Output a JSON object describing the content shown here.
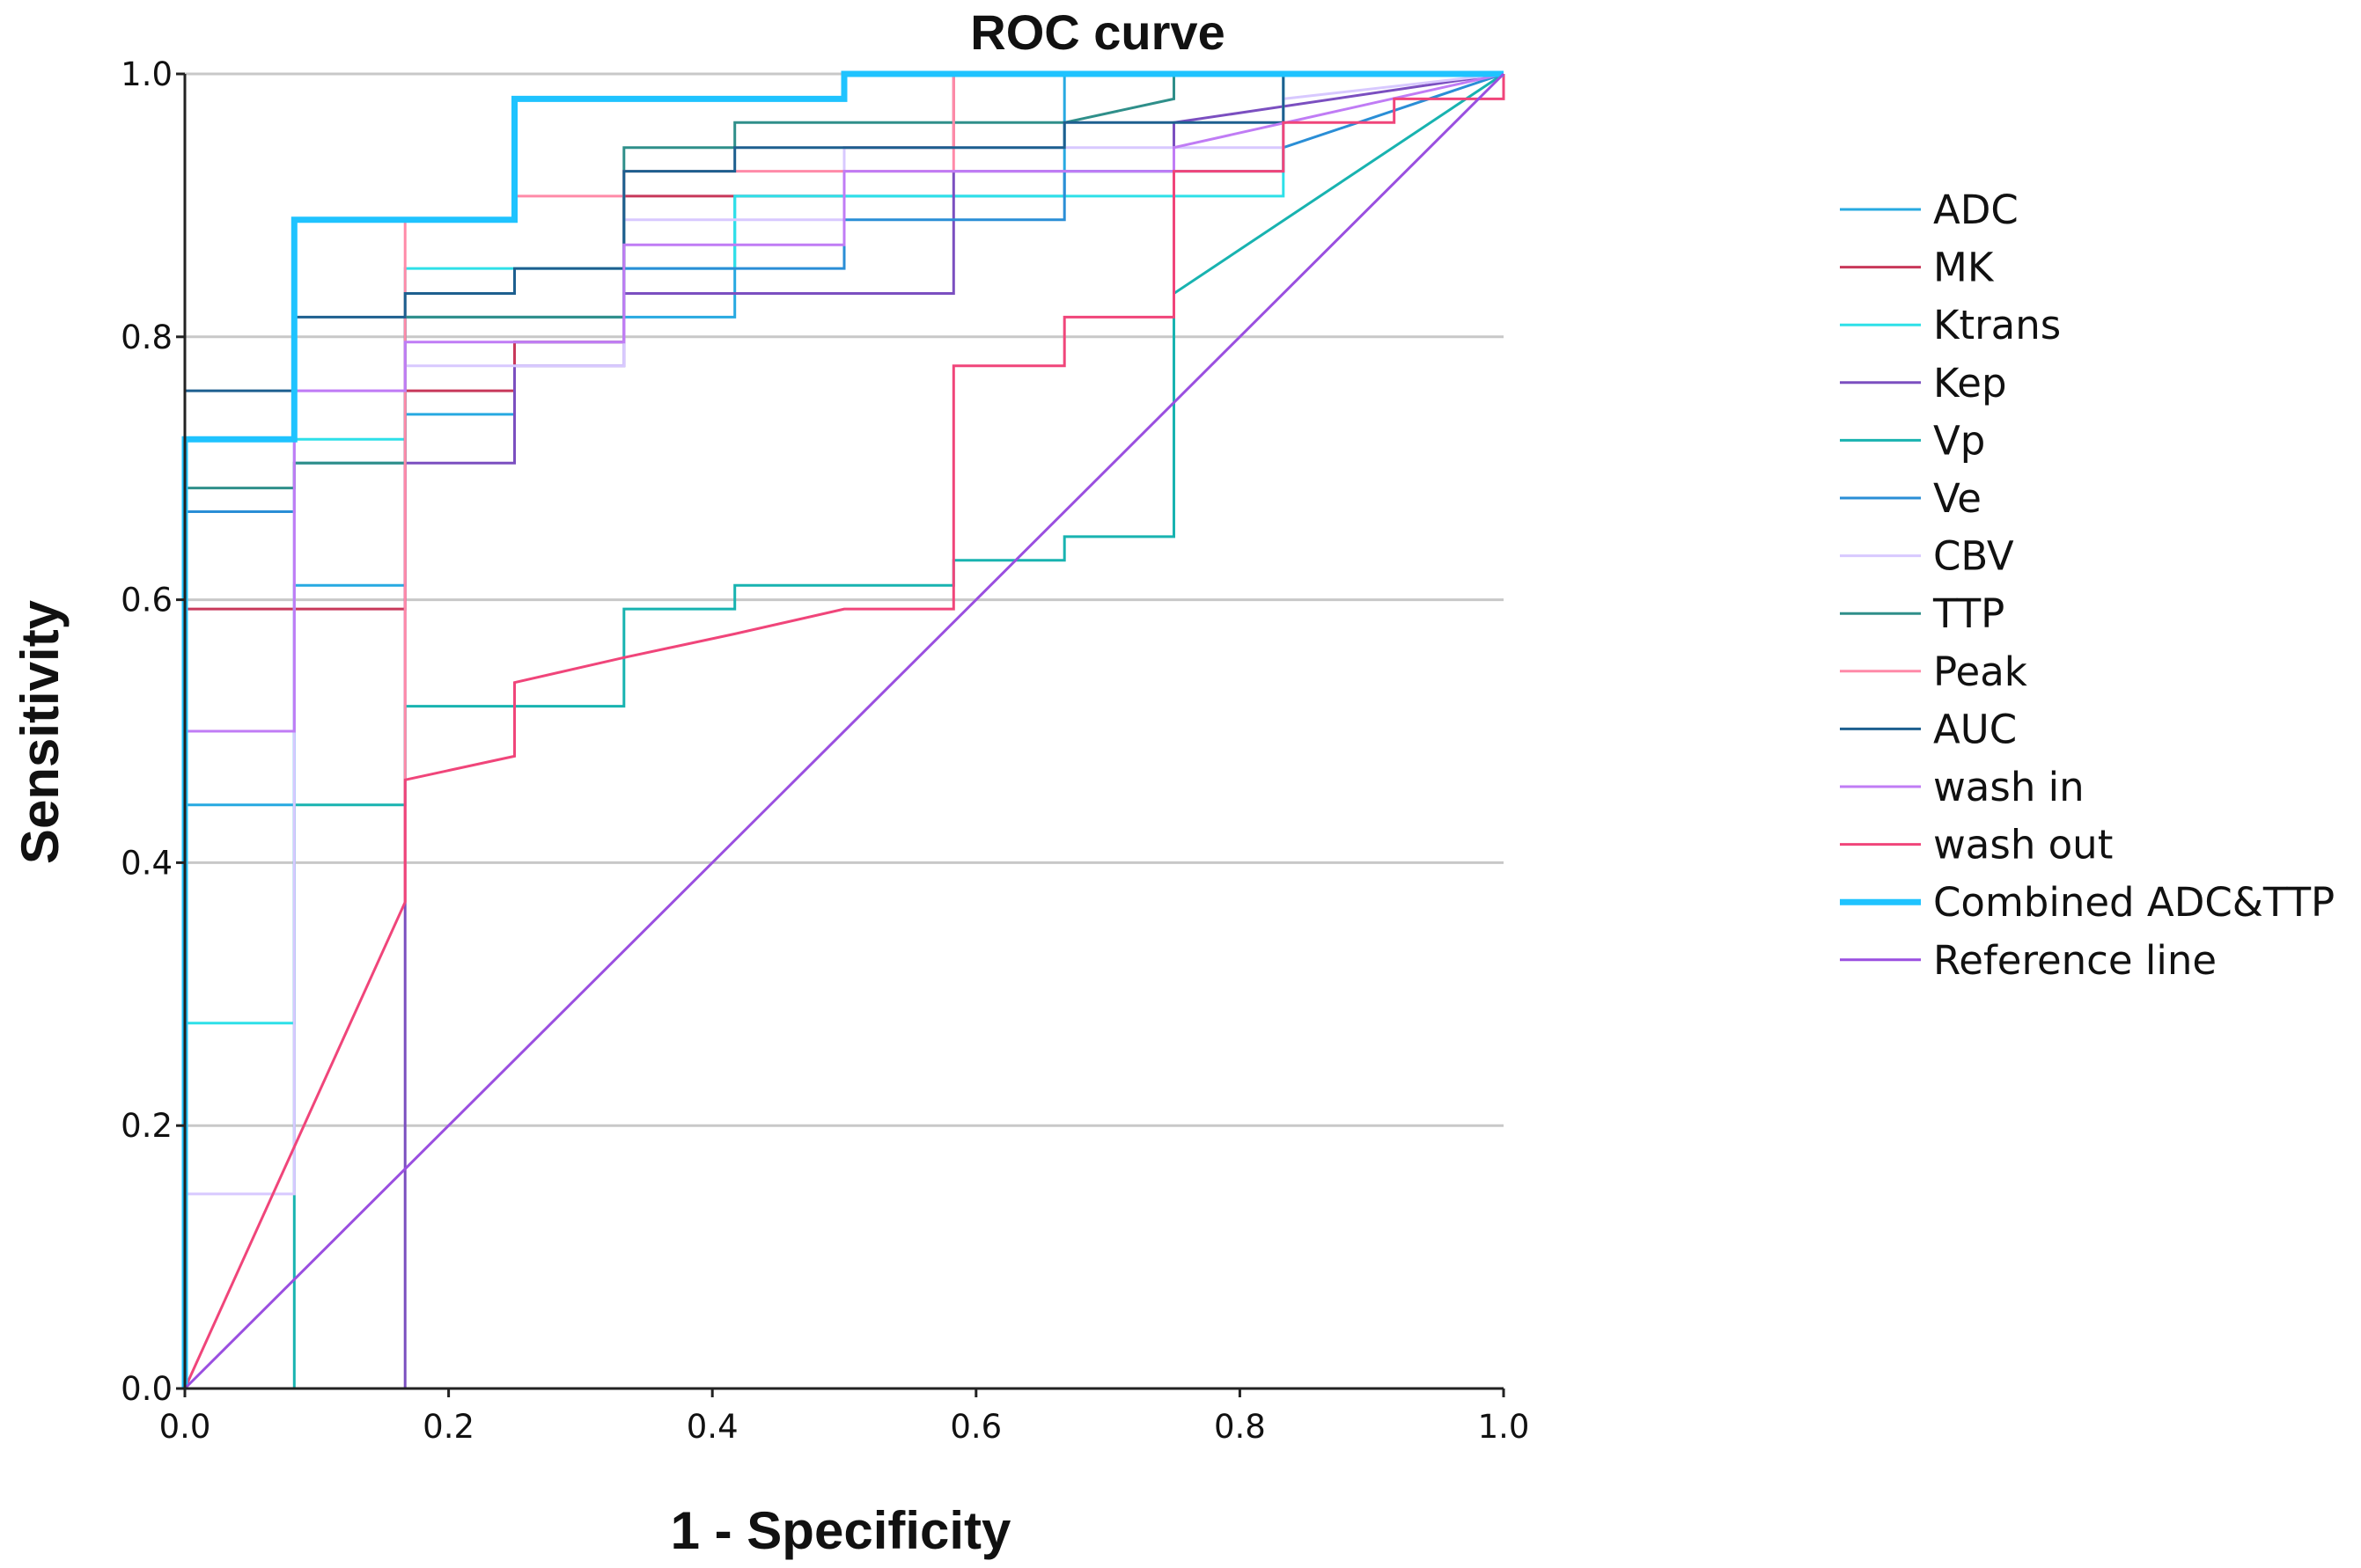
{
  "chart_data": {
    "type": "line",
    "title": "ROC curve",
    "xlabel": "1 - Specificity",
    "ylabel": "Sensitivity",
    "xlim": [
      0,
      1
    ],
    "ylim": [
      0,
      1
    ],
    "x_ticks": [
      "0.0",
      "0.2",
      "0.4",
      "0.6",
      "0.8",
      "1.0"
    ],
    "y_ticks": [
      "0.0",
      "0.2",
      "0.4",
      "0.6",
      "0.8",
      "1.0"
    ],
    "grid": "horizontal",
    "legend_position": "right",
    "series": [
      {
        "name": "ADC",
        "color": "#27a9e1",
        "width": 3,
        "x": [
          0,
          0,
          0,
          0.083,
          0.083,
          0.083,
          0.167,
          0.167,
          0.25,
          0.25,
          0.333,
          0.333,
          0.417,
          0.417,
          0.667,
          0.667,
          1
        ],
        "y": [
          0,
          0.444,
          0.444,
          0.444,
          0.611,
          0.611,
          0.611,
          0.741,
          0.741,
          0.796,
          0.796,
          0.815,
          0.815,
          0.907,
          0.907,
          1,
          1
        ]
      },
      {
        "name": "MK",
        "color": "#c8385a",
        "width": 3,
        "x": [
          0,
          0,
          0.167,
          0.167,
          0.25,
          0.25,
          0.333,
          0.333,
          0.5,
          0.5,
          0.583,
          0.583,
          1
        ],
        "y": [
          0,
          0.593,
          0.593,
          0.759,
          0.759,
          0.796,
          0.796,
          0.907,
          0.907,
          0.944,
          0.944,
          1,
          1
        ]
      },
      {
        "name": "Ktrans",
        "color": "#2ee0e8",
        "width": 3,
        "x": [
          0,
          0,
          0.083,
          0.083,
          0.167,
          0.167,
          0.333,
          0.333,
          0.417,
          0.417,
          0.75,
          0.75,
          0.833,
          0.833,
          1
        ],
        "y": [
          0,
          0.278,
          0.278,
          0.722,
          0.722,
          0.852,
          0.852,
          0.852,
          0.852,
          0.907,
          0.907,
          0.907,
          0.907,
          1,
          1
        ]
      },
      {
        "name": "Kep",
        "color": "#7b4fc0",
        "width": 3,
        "x": [
          0.083,
          0.167,
          0.167,
          0.25,
          0.25,
          0.333,
          0.333,
          0.583,
          0.583,
          0.75,
          0.75,
          1
        ],
        "y": [
          0,
          0,
          0.704,
          0.704,
          0.778,
          0.778,
          0.833,
          0.833,
          0.926,
          0.926,
          0.963,
          1
        ]
      },
      {
        "name": "Vp",
        "color": "#18b3b0",
        "width": 3,
        "x": [
          0,
          0.083,
          0.083,
          0.167,
          0.167,
          0.333,
          0.333,
          0.417,
          0.417,
          0.583,
          0.583,
          0.667,
          0.667,
          0.75,
          0.75,
          1
        ],
        "y": [
          0,
          0,
          0.444,
          0.444,
          0.519,
          0.519,
          0.593,
          0.593,
          0.611,
          0.611,
          0.63,
          0.63,
          0.648,
          0.648,
          0.833,
          1
        ]
      },
      {
        "name": "Ve",
        "color": "#2a8ed6",
        "width": 3,
        "x": [
          0,
          0,
          0.083,
          0.083,
          0.167,
          0.167,
          0.333,
          0.333,
          0.5,
          0.5,
          0.667,
          0.667,
          0.833,
          0.833,
          1
        ],
        "y": [
          0,
          0.667,
          0.667,
          0.704,
          0.704,
          0.815,
          0.815,
          0.852,
          0.852,
          0.889,
          0.889,
          0.926,
          0.926,
          0.944,
          1
        ]
      },
      {
        "name": "CBV",
        "color": "#d8c9ff",
        "width": 3,
        "x": [
          0,
          0,
          0.083,
          0.083,
          0.167,
          0.167,
          0.333,
          0.333,
          0.5,
          0.5,
          0.833,
          0.833,
          1
        ],
        "y": [
          0,
          0.148,
          0.148,
          0.759,
          0.759,
          0.778,
          0.778,
          0.889,
          0.889,
          0.944,
          0.944,
          0.981,
          1
        ]
      },
      {
        "name": "TTP",
        "color": "#2f8f8a",
        "width": 3,
        "x": [
          0,
          0,
          0.083,
          0.083,
          0.167,
          0.167,
          0.333,
          0.333,
          0.417,
          0.417,
          0.667,
          0.75,
          0.75,
          1
        ],
        "y": [
          0,
          0.685,
          0.685,
          0.704,
          0.704,
          0.815,
          0.815,
          0.944,
          0.944,
          0.963,
          0.963,
          0.981,
          1,
          1
        ]
      },
      {
        "name": "Peak",
        "color": "#ff8aa8",
        "width": 3,
        "x": [
          0.167,
          0.167,
          0.25,
          0.25,
          0.333,
          0.333,
          0.583,
          0.583,
          1
        ],
        "y": [
          0.37,
          0.889,
          0.889,
          0.907,
          0.907,
          0.926,
          0.926,
          1,
          1
        ]
      },
      {
        "name": "AUC",
        "color": "#1d5f8f",
        "width": 3,
        "x": [
          0,
          0,
          0.083,
          0.083,
          0.167,
          0.167,
          0.25,
          0.25,
          0.333,
          0.333,
          0.417,
          0.417,
          0.667,
          0.667,
          0.833,
          0.833,
          1
        ],
        "y": [
          0,
          0.759,
          0.759,
          0.815,
          0.815,
          0.833,
          0.833,
          0.852,
          0.852,
          0.926,
          0.926,
          0.944,
          0.944,
          0.963,
          0.963,
          1,
          1
        ]
      },
      {
        "name": "wash in",
        "color": "#c07cf5",
        "width": 3,
        "x": [
          0,
          0,
          0.083,
          0.083,
          0.167,
          0.167,
          0.25,
          0.25,
          0.333,
          0.333,
          0.5,
          0.5,
          0.75,
          0.75,
          1
        ],
        "y": [
          0,
          0.5,
          0.5,
          0.759,
          0.759,
          0.796,
          0.796,
          0.796,
          0.796,
          0.87,
          0.87,
          0.926,
          0.926,
          0.944,
          1
        ]
      },
      {
        "name": "wash out",
        "color": "#f0457a",
        "width": 3,
        "x": [
          0,
          0.167,
          0.167,
          0.25,
          0.25,
          0.333,
          0.333,
          0.417,
          0.417,
          0.5,
          0.5,
          0.583,
          0.583,
          0.667,
          0.667,
          0.75,
          0.75,
          0.833,
          0.833,
          0.917,
          0.917,
          1,
          1
        ],
        "y": [
          0,
          0.37,
          0.463,
          0.481,
          0.537,
          0.556,
          0.556,
          0.574,
          0.574,
          0.593,
          0.593,
          0.593,
          0.778,
          0.778,
          0.815,
          0.815,
          0.926,
          0.926,
          0.963,
          0.963,
          0.981,
          0.981,
          1
        ]
      },
      {
        "name": "Combined ADC&TTP",
        "color": "#1fc3ff",
        "width": 7,
        "x": [
          0,
          0,
          0.083,
          0.083,
          0.25,
          0.25,
          0.5,
          0.5,
          1
        ],
        "y": [
          0,
          0.722,
          0.722,
          0.889,
          0.889,
          0.981,
          0.981,
          1,
          1
        ]
      },
      {
        "name": "Reference line",
        "color": "#9a4fe0",
        "width": 3,
        "x": [
          0,
          1
        ],
        "y": [
          0,
          1
        ]
      }
    ]
  }
}
